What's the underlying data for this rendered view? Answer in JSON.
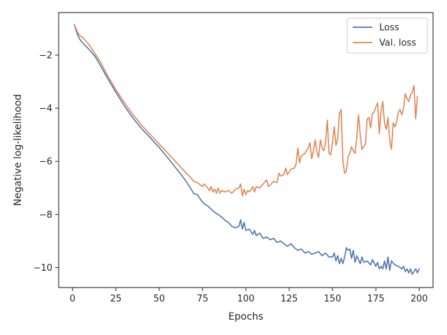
{
  "chart_data": {
    "type": "line",
    "title": "",
    "xlabel": "Epochs",
    "ylabel": "Negative log-likelihood",
    "xlim": [
      -8,
      208
    ],
    "ylim": [
      -10.75,
      -0.4
    ],
    "x_ticks": [
      0,
      25,
      50,
      75,
      100,
      125,
      150,
      175,
      200
    ],
    "y_ticks": [
      -2,
      -4,
      -6,
      -8,
      -10
    ],
    "x_tick_labels": [
      "0",
      "25",
      "50",
      "75",
      "100",
      "125",
      "150",
      "175",
      "200"
    ],
    "y_tick_labels": [
      "−2",
      "−4",
      "−6",
      "−8",
      "−10"
    ],
    "grid": false,
    "legend_position": "top-right",
    "series": [
      {
        "name": "Loss",
        "color": "#4c72b0",
        "points": [
          [
            1,
            -0.85
          ],
          [
            2,
            -1.05
          ],
          [
            3,
            -1.25
          ],
          [
            4,
            -1.38
          ],
          [
            5,
            -1.48
          ],
          [
            7,
            -1.62
          ],
          [
            10,
            -1.82
          ],
          [
            13,
            -2.05
          ],
          [
            16,
            -2.38
          ],
          [
            20,
            -2.85
          ],
          [
            25,
            -3.4
          ],
          [
            30,
            -3.92
          ],
          [
            35,
            -4.38
          ],
          [
            40,
            -4.78
          ],
          [
            45,
            -5.12
          ],
          [
            50,
            -5.48
          ],
          [
            55,
            -5.87
          ],
          [
            60,
            -6.28
          ],
          [
            65,
            -6.7
          ],
          [
            68,
            -7.0
          ],
          [
            70,
            -7.22
          ],
          [
            72,
            -7.25
          ],
          [
            74,
            -7.45
          ],
          [
            76,
            -7.6
          ],
          [
            78,
            -7.68
          ],
          [
            80,
            -7.8
          ],
          [
            82,
            -7.92
          ],
          [
            84,
            -8.0
          ],
          [
            86,
            -8.1
          ],
          [
            88,
            -8.22
          ],
          [
            90,
            -8.3
          ],
          [
            92,
            -8.45
          ],
          [
            94,
            -8.5
          ],
          [
            96,
            -8.45
          ],
          [
            97,
            -8.2
          ],
          [
            98,
            -8.55
          ],
          [
            99,
            -8.3
          ],
          [
            100,
            -8.6
          ],
          [
            102,
            -8.55
          ],
          [
            104,
            -8.75
          ],
          [
            105,
            -8.6
          ],
          [
            106,
            -8.8
          ],
          [
            108,
            -8.7
          ],
          [
            110,
            -8.9
          ],
          [
            112,
            -8.85
          ],
          [
            114,
            -8.95
          ],
          [
            116,
            -8.9
          ],
          [
            118,
            -9.05
          ],
          [
            120,
            -9.0
          ],
          [
            122,
            -9.1
          ],
          [
            124,
            -9.2
          ],
          [
            126,
            -9.1
          ],
          [
            128,
            -9.25
          ],
          [
            130,
            -9.35
          ],
          [
            132,
            -9.3
          ],
          [
            134,
            -9.45
          ],
          [
            136,
            -9.4
          ],
          [
            138,
            -9.5
          ],
          [
            140,
            -9.45
          ],
          [
            142,
            -9.4
          ],
          [
            144,
            -9.55
          ],
          [
            146,
            -9.45
          ],
          [
            148,
            -9.6
          ],
          [
            150,
            -9.6
          ],
          [
            151,
            -9.45
          ],
          [
            152,
            -9.75
          ],
          [
            153,
            -9.55
          ],
          [
            154,
            -9.85
          ],
          [
            155,
            -9.65
          ],
          [
            156,
            -9.85
          ],
          [
            157,
            -9.6
          ],
          [
            158,
            -9.25
          ],
          [
            159,
            -9.35
          ],
          [
            160,
            -9.3
          ],
          [
            161,
            -9.65
          ],
          [
            162,
            -9.35
          ],
          [
            163,
            -9.8
          ],
          [
            164,
            -9.55
          ],
          [
            166,
            -9.85
          ],
          [
            167,
            -9.6
          ],
          [
            168,
            -9.8
          ],
          [
            170,
            -9.75
          ],
          [
            172,
            -9.9
          ],
          [
            173,
            -9.7
          ],
          [
            175,
            -9.95
          ],
          [
            176,
            -9.8
          ],
          [
            177,
            -10.05
          ],
          [
            178,
            -9.95
          ],
          [
            179,
            -10.05
          ],
          [
            180,
            -9.75
          ],
          [
            181,
            -10.05
          ],
          [
            182,
            -9.6
          ],
          [
            183,
            -10.1
          ],
          [
            184,
            -9.75
          ],
          [
            186,
            -9.9
          ],
          [
            188,
            -9.95
          ],
          [
            190,
            -10.05
          ],
          [
            191,
            -9.95
          ],
          [
            192,
            -10.15
          ],
          [
            193,
            -10.05
          ],
          [
            194,
            -10.2
          ],
          [
            195,
            -10.05
          ],
          [
            196,
            -10.25
          ],
          [
            197,
            -10.15
          ],
          [
            198,
            -10.05
          ],
          [
            199,
            -10.2
          ],
          [
            200,
            -10.05
          ]
        ]
      },
      {
        "name": "Val. loss",
        "color": "#dd8452",
        "points": [
          [
            1,
            -0.85
          ],
          [
            2,
            -1.0
          ],
          [
            3,
            -1.15
          ],
          [
            4,
            -1.25
          ],
          [
            6,
            -1.35
          ],
          [
            8,
            -1.5
          ],
          [
            10,
            -1.65
          ],
          [
            13,
            -1.95
          ],
          [
            16,
            -2.25
          ],
          [
            20,
            -2.75
          ],
          [
            25,
            -3.3
          ],
          [
            30,
            -3.8
          ],
          [
            35,
            -4.25
          ],
          [
            40,
            -4.65
          ],
          [
            45,
            -5.0
          ],
          [
            50,
            -5.35
          ],
          [
            55,
            -5.7
          ],
          [
            60,
            -6.05
          ],
          [
            65,
            -6.4
          ],
          [
            68,
            -6.6
          ],
          [
            70,
            -6.75
          ],
          [
            72,
            -6.8
          ],
          [
            74,
            -6.9
          ],
          [
            75,
            -6.95
          ],
          [
            76,
            -6.85
          ],
          [
            78,
            -7.0
          ],
          [
            79,
            -7.1
          ],
          [
            80,
            -6.95
          ],
          [
            81,
            -7.15
          ],
          [
            82,
            -7.05
          ],
          [
            83,
            -7.2
          ],
          [
            84,
            -7.0
          ],
          [
            85,
            -7.2
          ],
          [
            86,
            -7.1
          ],
          [
            88,
            -7.15
          ],
          [
            90,
            -7.1
          ],
          [
            92,
            -7.2
          ],
          [
            94,
            -7.05
          ],
          [
            96,
            -7.0
          ],
          [
            97,
            -6.85
          ],
          [
            98,
            -7.3
          ],
          [
            99,
            -7.05
          ],
          [
            100,
            -7.25
          ],
          [
            101,
            -7.1
          ],
          [
            102,
            -7.15
          ],
          [
            104,
            -6.95
          ],
          [
            105,
            -7.15
          ],
          [
            106,
            -6.95
          ],
          [
            108,
            -7.0
          ],
          [
            110,
            -6.85
          ],
          [
            112,
            -6.7
          ],
          [
            113,
            -6.95
          ],
          [
            114,
            -6.9
          ],
          [
            116,
            -6.75
          ],
          [
            118,
            -6.8
          ],
          [
            119,
            -6.45
          ],
          [
            120,
            -6.55
          ],
          [
            122,
            -6.5
          ],
          [
            123,
            -6.25
          ],
          [
            124,
            -6.5
          ],
          [
            126,
            -6.3
          ],
          [
            128,
            -6.25
          ],
          [
            129,
            -6.1
          ],
          [
            130,
            -5.5
          ],
          [
            131,
            -6.05
          ],
          [
            132,
            -5.8
          ],
          [
            134,
            -5.7
          ],
          [
            136,
            -5.5
          ],
          [
            137,
            -5.3
          ],
          [
            138,
            -5.9
          ],
          [
            139,
            -5.6
          ],
          [
            140,
            -5.2
          ],
          [
            141,
            -5.65
          ],
          [
            142,
            -5.85
          ],
          [
            143,
            -5.2
          ],
          [
            144,
            -5.5
          ],
          [
            145,
            -5.6
          ],
          [
            146,
            -5.3
          ],
          [
            147,
            -4.45
          ],
          [
            148,
            -5.7
          ],
          [
            149,
            -5.75
          ],
          [
            150,
            -5.3
          ],
          [
            151,
            -4.7
          ],
          [
            152,
            -5.4
          ],
          [
            153,
            -5.15
          ],
          [
            154,
            -4.2
          ],
          [
            155,
            -4.05
          ],
          [
            156,
            -6.0
          ],
          [
            157,
            -6.45
          ],
          [
            158,
            -6.35
          ],
          [
            159,
            -5.8
          ],
          [
            160,
            -5.7
          ],
          [
            161,
            -5.45
          ],
          [
            162,
            -5.6
          ],
          [
            163,
            -5.7
          ],
          [
            164,
            -5.1
          ],
          [
            165,
            -4.25
          ],
          [
            166,
            -5.0
          ],
          [
            167,
            -5.55
          ],
          [
            168,
            -5.45
          ],
          [
            169,
            -5.35
          ],
          [
            170,
            -4.4
          ],
          [
            171,
            -4.35
          ],
          [
            172,
            -4.75
          ],
          [
            173,
            -4.2
          ],
          [
            174,
            -4.15
          ],
          [
            175,
            -3.95
          ],
          [
            176,
            -3.8
          ],
          [
            177,
            -4.95
          ],
          [
            178,
            -4.1
          ],
          [
            179,
            -3.75
          ],
          [
            180,
            -4.55
          ],
          [
            181,
            -4.8
          ],
          [
            182,
            -4.35
          ],
          [
            183,
            -5.2
          ],
          [
            184,
            -5.55
          ],
          [
            185,
            -4.55
          ],
          [
            186,
            -4.7
          ],
          [
            187,
            -4.5
          ],
          [
            188,
            -4.15
          ],
          [
            189,
            -4.05
          ],
          [
            190,
            -4.25
          ],
          [
            191,
            -4.0
          ],
          [
            192,
            -3.45
          ],
          [
            193,
            -3.65
          ],
          [
            194,
            -3.75
          ],
          [
            195,
            -3.5
          ],
          [
            196,
            -3.4
          ],
          [
            197,
            -3.15
          ],
          [
            198,
            -4.4
          ],
          [
            199,
            -3.55
          ]
        ]
      }
    ]
  }
}
